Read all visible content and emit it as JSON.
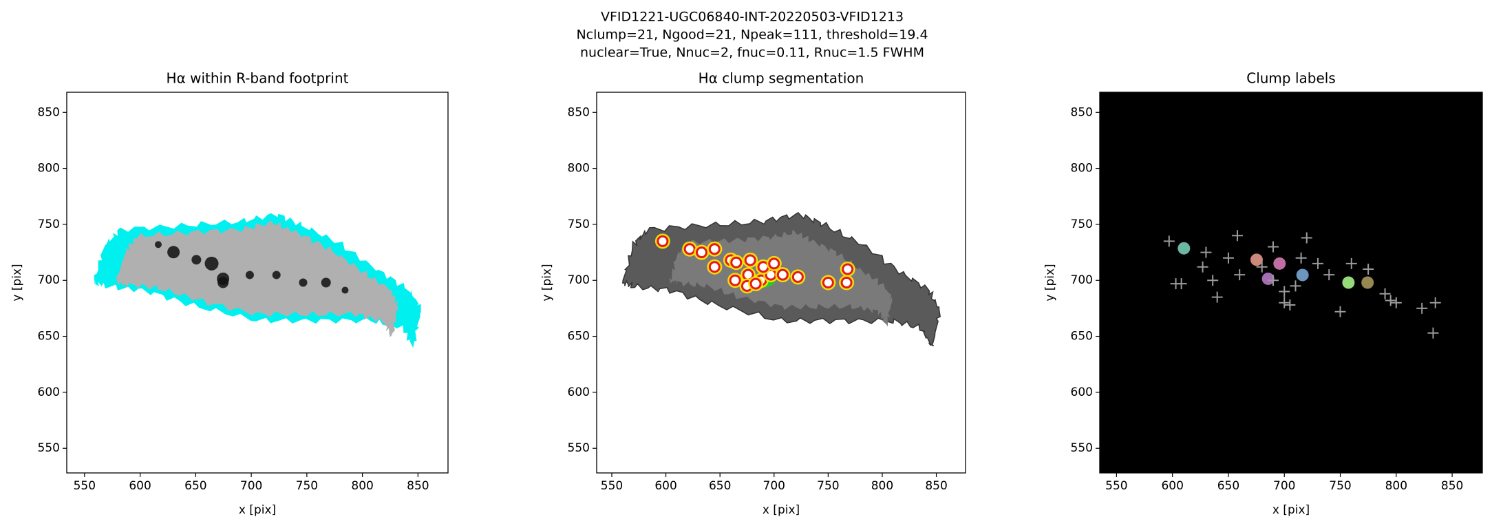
{
  "figure": {
    "title_lines": [
      "VFID1221-UGC06840-INT-20220503-VFID1213",
      "Nclump=21, Ngood=21, Npeak=111, threshold=19.4",
      "nuclear=True, Nnuc=2, fnuc=0.11, Rnuc=1.5 FWHM"
    ]
  },
  "chart_data": [
    {
      "type": "image",
      "title": "Hα within R-band footprint",
      "x_label": "x [pix]",
      "y_label": "y [pix]",
      "xlim": [
        534,
        877
      ],
      "ylim": [
        528,
        868
      ],
      "xticks": [
        550,
        600,
        650,
        700,
        750,
        800,
        850
      ],
      "yticks": [
        550,
        600,
        650,
        700,
        750,
        800,
        850
      ],
      "background": "#ffffff"
    },
    {
      "type": "scatter",
      "title": "Hα clump segmentation",
      "x_label": "x [pix]",
      "y_label": "y [pix]",
      "xlim": [
        536,
        877
      ],
      "ylim": [
        528,
        868
      ],
      "xticks": [
        550,
        600,
        650,
        700,
        750,
        800,
        850
      ],
      "yticks": [
        550,
        600,
        650,
        700,
        750,
        800,
        850
      ],
      "background": "#ffffff",
      "series": [
        {
          "name": "clumps",
          "color": "#e31a1c",
          "marker": "ring",
          "x": [
            597,
            622,
            633,
            645,
            660,
            665,
            678,
            664,
            676,
            688,
            675,
            697,
            708,
            722,
            750,
            767,
            768,
            645,
            690,
            700,
            683
          ],
          "values": [
            735,
            728,
            725,
            728,
            718,
            716,
            718,
            700,
            705,
            700,
            695,
            705,
            705,
            703,
            698,
            698,
            710,
            712,
            712,
            715,
            697
          ]
        }
      ]
    },
    {
      "type": "scatter",
      "title": "Clump labels",
      "x_label": "x [pix]",
      "y_label": "y [pix]",
      "xlim": [
        535,
        877
      ],
      "ylim": [
        528,
        868
      ],
      "xticks": [
        550,
        600,
        650,
        700,
        750,
        800,
        850
      ],
      "yticks": [
        550,
        600,
        650,
        700,
        750,
        800,
        850
      ],
      "background": "#000000",
      "series": [
        {
          "name": "peaks",
          "color": "#9a9a9a",
          "marker": "plus",
          "x": [
            597,
            630,
            658,
            720,
            608,
            640,
            636,
            627,
            660,
            680,
            690,
            700,
            710,
            750,
            760,
            775,
            790,
            795,
            800,
            823,
            835,
            833,
            700,
            705,
            740,
            730,
            690,
            650,
            603,
            715
          ],
          "values": [
            735,
            725,
            740,
            738,
            697,
            685,
            700,
            712,
            705,
            712,
            700,
            690,
            695,
            672,
            715,
            710,
            688,
            682,
            680,
            675,
            680,
            653,
            680,
            678,
            705,
            715,
            730,
            720,
            697,
            720
          ]
        }
      ]
    }
  ]
}
